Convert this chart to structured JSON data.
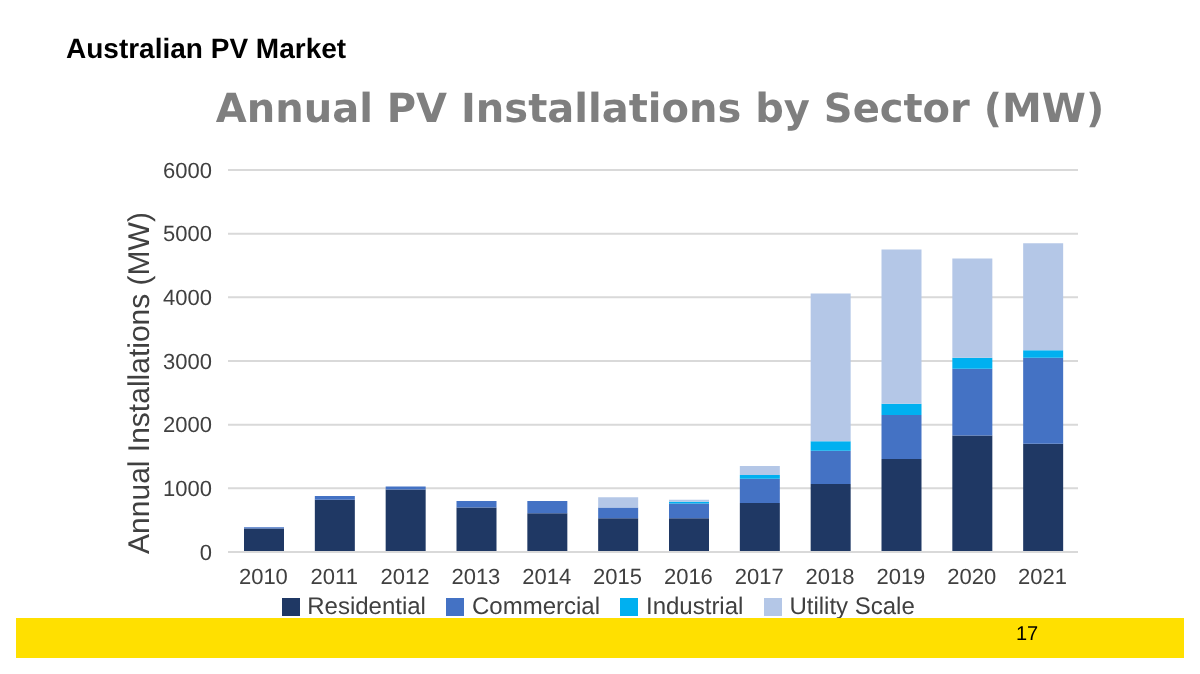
{
  "chart_data": {
    "type": "bar",
    "title": "Australian PV Market",
    "subtitle": "Annual PV Installations by Sector (MW)",
    "ylabel": "Annual Installations (MW)",
    "annotations": [
      "17"
    ],
    "categories": [
      "2010",
      "2011",
      "2012",
      "2013",
      "2014",
      "2015",
      "2016",
      "2017",
      "2018",
      "2019",
      "2020",
      "2021"
    ],
    "stacked": true,
    "ylim": [
      0,
      6000
    ],
    "yticks": [
      0,
      1000,
      2000,
      3000,
      4000,
      5000,
      6000
    ],
    "grid": "y",
    "legend": "bottom",
    "series": [
      {
        "name": "Residential",
        "color": "#1f3864",
        "values": [
          370,
          820,
          980,
          700,
          610,
          530,
          530,
          770,
          1070,
          1460,
          1830,
          1700
        ]
      },
      {
        "name": "Commercial",
        "color": "#4472c4",
        "values": [
          20,
          60,
          50,
          100,
          190,
          170,
          230,
          380,
          520,
          690,
          1050,
          1350
        ]
      },
      {
        "name": "Industrial",
        "color": "#00b0f0",
        "values": [
          0,
          0,
          0,
          0,
          0,
          0,
          30,
          60,
          150,
          180,
          170,
          120
        ]
      },
      {
        "name": "Utility Scale",
        "color": "#b4c7e7",
        "values": [
          0,
          0,
          0,
          0,
          0,
          160,
          30,
          140,
          2320,
          2420,
          1560,
          1680
        ]
      }
    ]
  }
}
